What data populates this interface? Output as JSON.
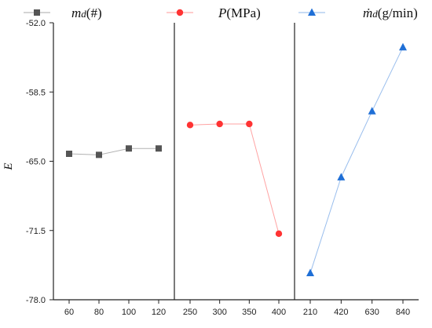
{
  "chart_data": {
    "type": "line",
    "ylabel": "E",
    "ylim": [
      -78.0,
      -52.0
    ],
    "yticks": [
      "-52.0",
      "-58.5",
      "-65.0",
      "-71.5",
      "-78.0"
    ],
    "yticks_values": [
      -52.0,
      -58.5,
      -65.0,
      -71.5,
      -78.0
    ],
    "legend_position": "top",
    "series": [
      {
        "name": "md(#)",
        "color": "#555555",
        "marker": "square",
        "categories": [
          "60",
          "80",
          "100",
          "120"
        ],
        "values": [
          -64.3,
          -64.4,
          -63.8,
          -63.8
        ]
      },
      {
        "name": "P(MPa)",
        "color": "#ff3333",
        "marker": "circle",
        "categories": [
          "250",
          "300",
          "350",
          "400"
        ],
        "values": [
          -61.6,
          -61.5,
          -61.5,
          -71.8
        ]
      },
      {
        "name": "ṁd(g/min)",
        "color": "#1f6fd6",
        "marker": "triangle",
        "categories": [
          "210",
          "420",
          "630",
          "840"
        ],
        "values": [
          -75.5,
          -66.5,
          -60.3,
          -54.3
        ]
      }
    ]
  },
  "legend": [
    {
      "prefix": "m",
      "sub": "d",
      "suffix": "(#)"
    },
    {
      "prefix": "P",
      "sub": "",
      "suffix": "(MPa)"
    },
    {
      "prefix": "ṁ",
      "sub": "d",
      "suffix": "(g/min)"
    }
  ]
}
